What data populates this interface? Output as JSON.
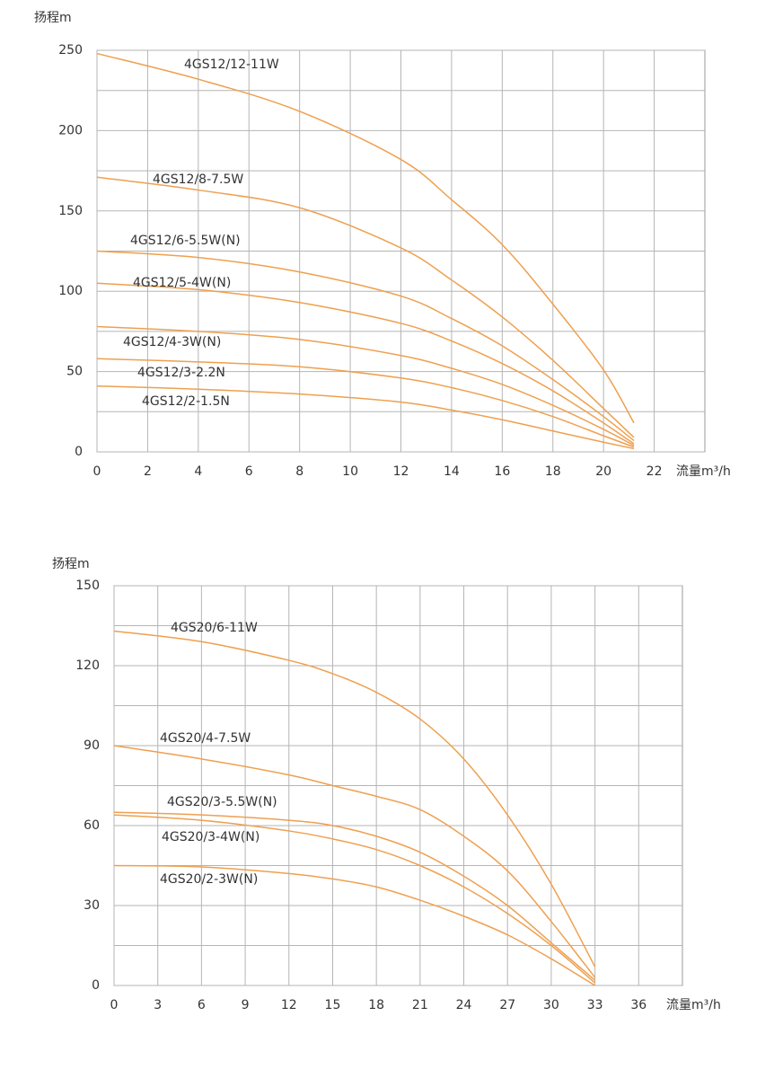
{
  "chart_data": [
    {
      "type": "line",
      "y_label": "扬程m",
      "x_label": "流量m³/h",
      "xlim": [
        0,
        24
      ],
      "xticks": [
        0,
        2,
        4,
        6,
        8,
        10,
        12,
        14,
        16,
        18,
        20,
        22
      ],
      "ylim": [
        0,
        250
      ],
      "yticks": [
        0,
        50,
        100,
        150,
        200,
        250
      ],
      "ygrid_minor": [
        25,
        75,
        125,
        175,
        225
      ],
      "grid": true,
      "x": [
        0,
        4,
        8,
        12,
        14,
        16,
        18,
        20,
        21.2
      ],
      "series": [
        {
          "name": "4GS12/12-11W",
          "color": "#eea04f",
          "values": [
            248,
            232,
            212,
            182,
            157,
            129,
            92,
            51,
            18
          ]
        },
        {
          "name": "4GS12/8-7.5W",
          "color": "#eea04f",
          "values": [
            171,
            163,
            152,
            127,
            107,
            84,
            57,
            27,
            9
          ]
        },
        {
          "name": "4GS12/6-5.5W(N)",
          "color": "#eea04f",
          "values": [
            125,
            121,
            112,
            97,
            83,
            66,
            45,
            22,
            7
          ]
        },
        {
          "name": "4GS12/5-4W(N)",
          "color": "#eea04f",
          "values": [
            105,
            101,
            93,
            80,
            69,
            55,
            38,
            18,
            5
          ]
        },
        {
          "name": "4GS12/4-3W(N)",
          "color": "#eea04f",
          "values": [
            78,
            75,
            70,
            60,
            52,
            42,
            29,
            14,
            4
          ]
        },
        {
          "name": "4GS12/3-2.2N",
          "color": "#eea04f",
          "values": [
            58,
            56,
            53,
            46,
            40,
            32,
            22,
            10,
            3
          ]
        },
        {
          "name": "4GS12/2-1.5N",
          "color": "#eea04f",
          "values": [
            41,
            39,
            36,
            31,
            26,
            20,
            13,
            6,
            2
          ]
        }
      ]
    },
    {
      "type": "line",
      "y_label": "扬程m",
      "x_label": "流量m³/h",
      "xlim": [
        0,
        39
      ],
      "xticks": [
        0,
        3,
        6,
        9,
        12,
        15,
        18,
        21,
        24,
        27,
        30,
        33,
        36
      ],
      "ylim": [
        0,
        150
      ],
      "yticks": [
        0,
        30,
        60,
        90,
        120,
        150
      ],
      "ygrid_minor": [
        15,
        45,
        75,
        105,
        135
      ],
      "grid": true,
      "x": [
        0,
        6,
        12,
        15,
        18,
        21,
        24,
        27,
        30,
        33
      ],
      "series": [
        {
          "name": "4GS20/6-11W",
          "color": "#eea04f",
          "values": [
            133,
            129,
            122,
            117,
            110,
            100,
            85,
            64,
            38,
            7
          ]
        },
        {
          "name": "4GS20/4-7.5W",
          "color": "#eea04f",
          "values": [
            90,
            85,
            79,
            75,
            71,
            66,
            56,
            43,
            24,
            3
          ]
        },
        {
          "name": "4GS20/3-5.5W(N)",
          "color": "#eea04f",
          "values": [
            65,
            64,
            62,
            60,
            56,
            50,
            41,
            30,
            16,
            2
          ]
        },
        {
          "name": "4GS20/3-4W(N)",
          "color": "#eea04f",
          "values": [
            64,
            62,
            58,
            55,
            51,
            45,
            37,
            27,
            15,
            1
          ]
        },
        {
          "name": "4GS20/2-3W(N)",
          "color": "#eea04f",
          "values": [
            45,
            44.5,
            42,
            40,
            37,
            32,
            26,
            19,
            10,
            0
          ]
        }
      ]
    }
  ]
}
